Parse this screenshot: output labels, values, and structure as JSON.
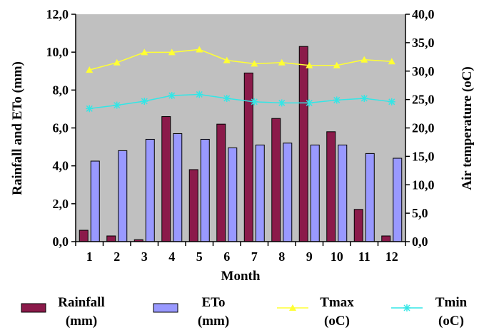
{
  "chart_data": {
    "type": "bar",
    "title": "",
    "xlabel": "Month",
    "ylabel": "Rainfall and ETo (mm)",
    "ylabel_right": "Air temperature (oC)",
    "categories": [
      "1",
      "2",
      "3",
      "4",
      "5",
      "6",
      "7",
      "8",
      "9",
      "10",
      "11",
      "12"
    ],
    "ylim": [
      0,
      12
    ],
    "ylim_right": [
      0,
      40
    ],
    "yticks": [
      "0,0",
      "2,0",
      "4,0",
      "6,0",
      "8,0",
      "10,0",
      "12,0"
    ],
    "yticks_right": [
      "0,0",
      "5,0",
      "10,0",
      "15,0",
      "20,0",
      "25,0",
      "30,0",
      "35,0",
      "40,0"
    ],
    "grid": false,
    "plot_background": "#c0c0c0",
    "series": [
      {
        "name_line1": "Rainfall",
        "name_line2": "(mm)",
        "type": "bar",
        "axis": "left",
        "color": "#8b1a4a",
        "values": [
          0.6,
          0.3,
          0.1,
          6.6,
          3.8,
          6.2,
          8.9,
          6.5,
          10.3,
          5.8,
          1.7,
          0.3
        ]
      },
      {
        "name_line1": "ETo",
        "name_line2": "(mm)",
        "type": "bar",
        "axis": "left",
        "color": "#9999ff",
        "values": [
          4.25,
          4.8,
          5.4,
          5.7,
          5.4,
          4.95,
          5.1,
          5.2,
          5.1,
          5.1,
          4.65,
          4.4
        ]
      },
      {
        "name_line1": "Tmax",
        "name_line2": "(oC)",
        "type": "line",
        "marker": "triangle",
        "axis": "right",
        "color": "#ffff33",
        "values": [
          30.2,
          31.5,
          33.3,
          33.3,
          33.8,
          31.9,
          31.3,
          31.5,
          31.0,
          31.0,
          32.0,
          31.7
        ]
      },
      {
        "name_line1": "Tmin",
        "name_line2": "(oC)",
        "type": "line",
        "marker": "star",
        "axis": "right",
        "color": "#33e6e6",
        "values": [
          23.4,
          24.0,
          24.7,
          25.7,
          25.9,
          25.2,
          24.6,
          24.4,
          24.4,
          24.9,
          25.2,
          24.6
        ]
      }
    ],
    "legend_position": "bottom"
  }
}
